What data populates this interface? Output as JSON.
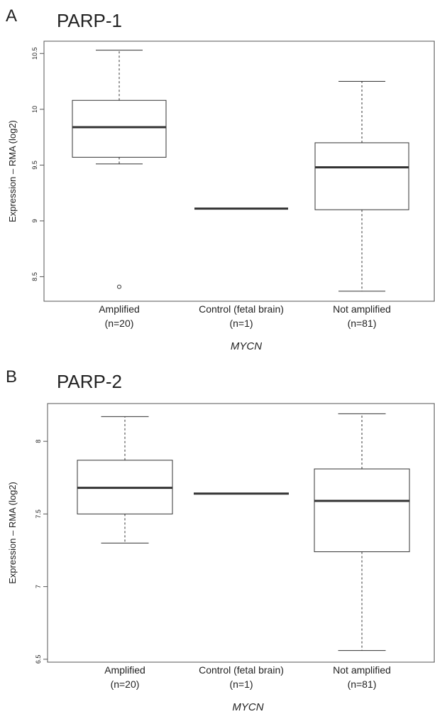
{
  "chart_data": [
    {
      "type": "box",
      "panel": "A",
      "title": "PARP-1",
      "ylabel": "Expression – RMA (log2)",
      "xlabel": "MYCN",
      "categories": [
        "Amplified",
        "Control (fetal brain)",
        "Not amplified"
      ],
      "category_notes": [
        "(n=20)",
        "(n=1)",
        "(n=81)"
      ],
      "boxes": [
        {
          "whislo": 9.51,
          "q1": 9.57,
          "med": 9.84,
          "q3": 10.08,
          "whishi": 10.53,
          "fliers": [
            8.41
          ]
        },
        {
          "med": 9.11
        },
        {
          "whislo": 8.37,
          "q1": 9.1,
          "med": 9.48,
          "q3": 9.7,
          "whishi": 10.25
        }
      ],
      "ylim": [
        8.28,
        10.61
      ],
      "yticks": [
        8.5,
        9.0,
        9.5,
        10.0,
        10.5
      ]
    },
    {
      "type": "box",
      "panel": "B",
      "title": "PARP-2",
      "ylabel": "Expression – RMA (log2)",
      "xlabel": "MYCN",
      "categories": [
        "Amplified",
        "Control (fetal brain)",
        "Not amplified"
      ],
      "category_notes": [
        "(n=20)",
        "(n=1)",
        "(n=81)"
      ],
      "boxes": [
        {
          "whislo": 7.3,
          "q1": 7.5,
          "med": 7.68,
          "q3": 7.87,
          "whishi": 8.17
        },
        {
          "med": 7.64
        },
        {
          "whislo": 6.56,
          "q1": 7.24,
          "med": 7.59,
          "q3": 7.81,
          "whishi": 8.19
        }
      ],
      "ylim": [
        6.48,
        8.26
      ],
      "yticks": [
        6.5,
        7.0,
        7.5,
        8.0
      ]
    }
  ]
}
